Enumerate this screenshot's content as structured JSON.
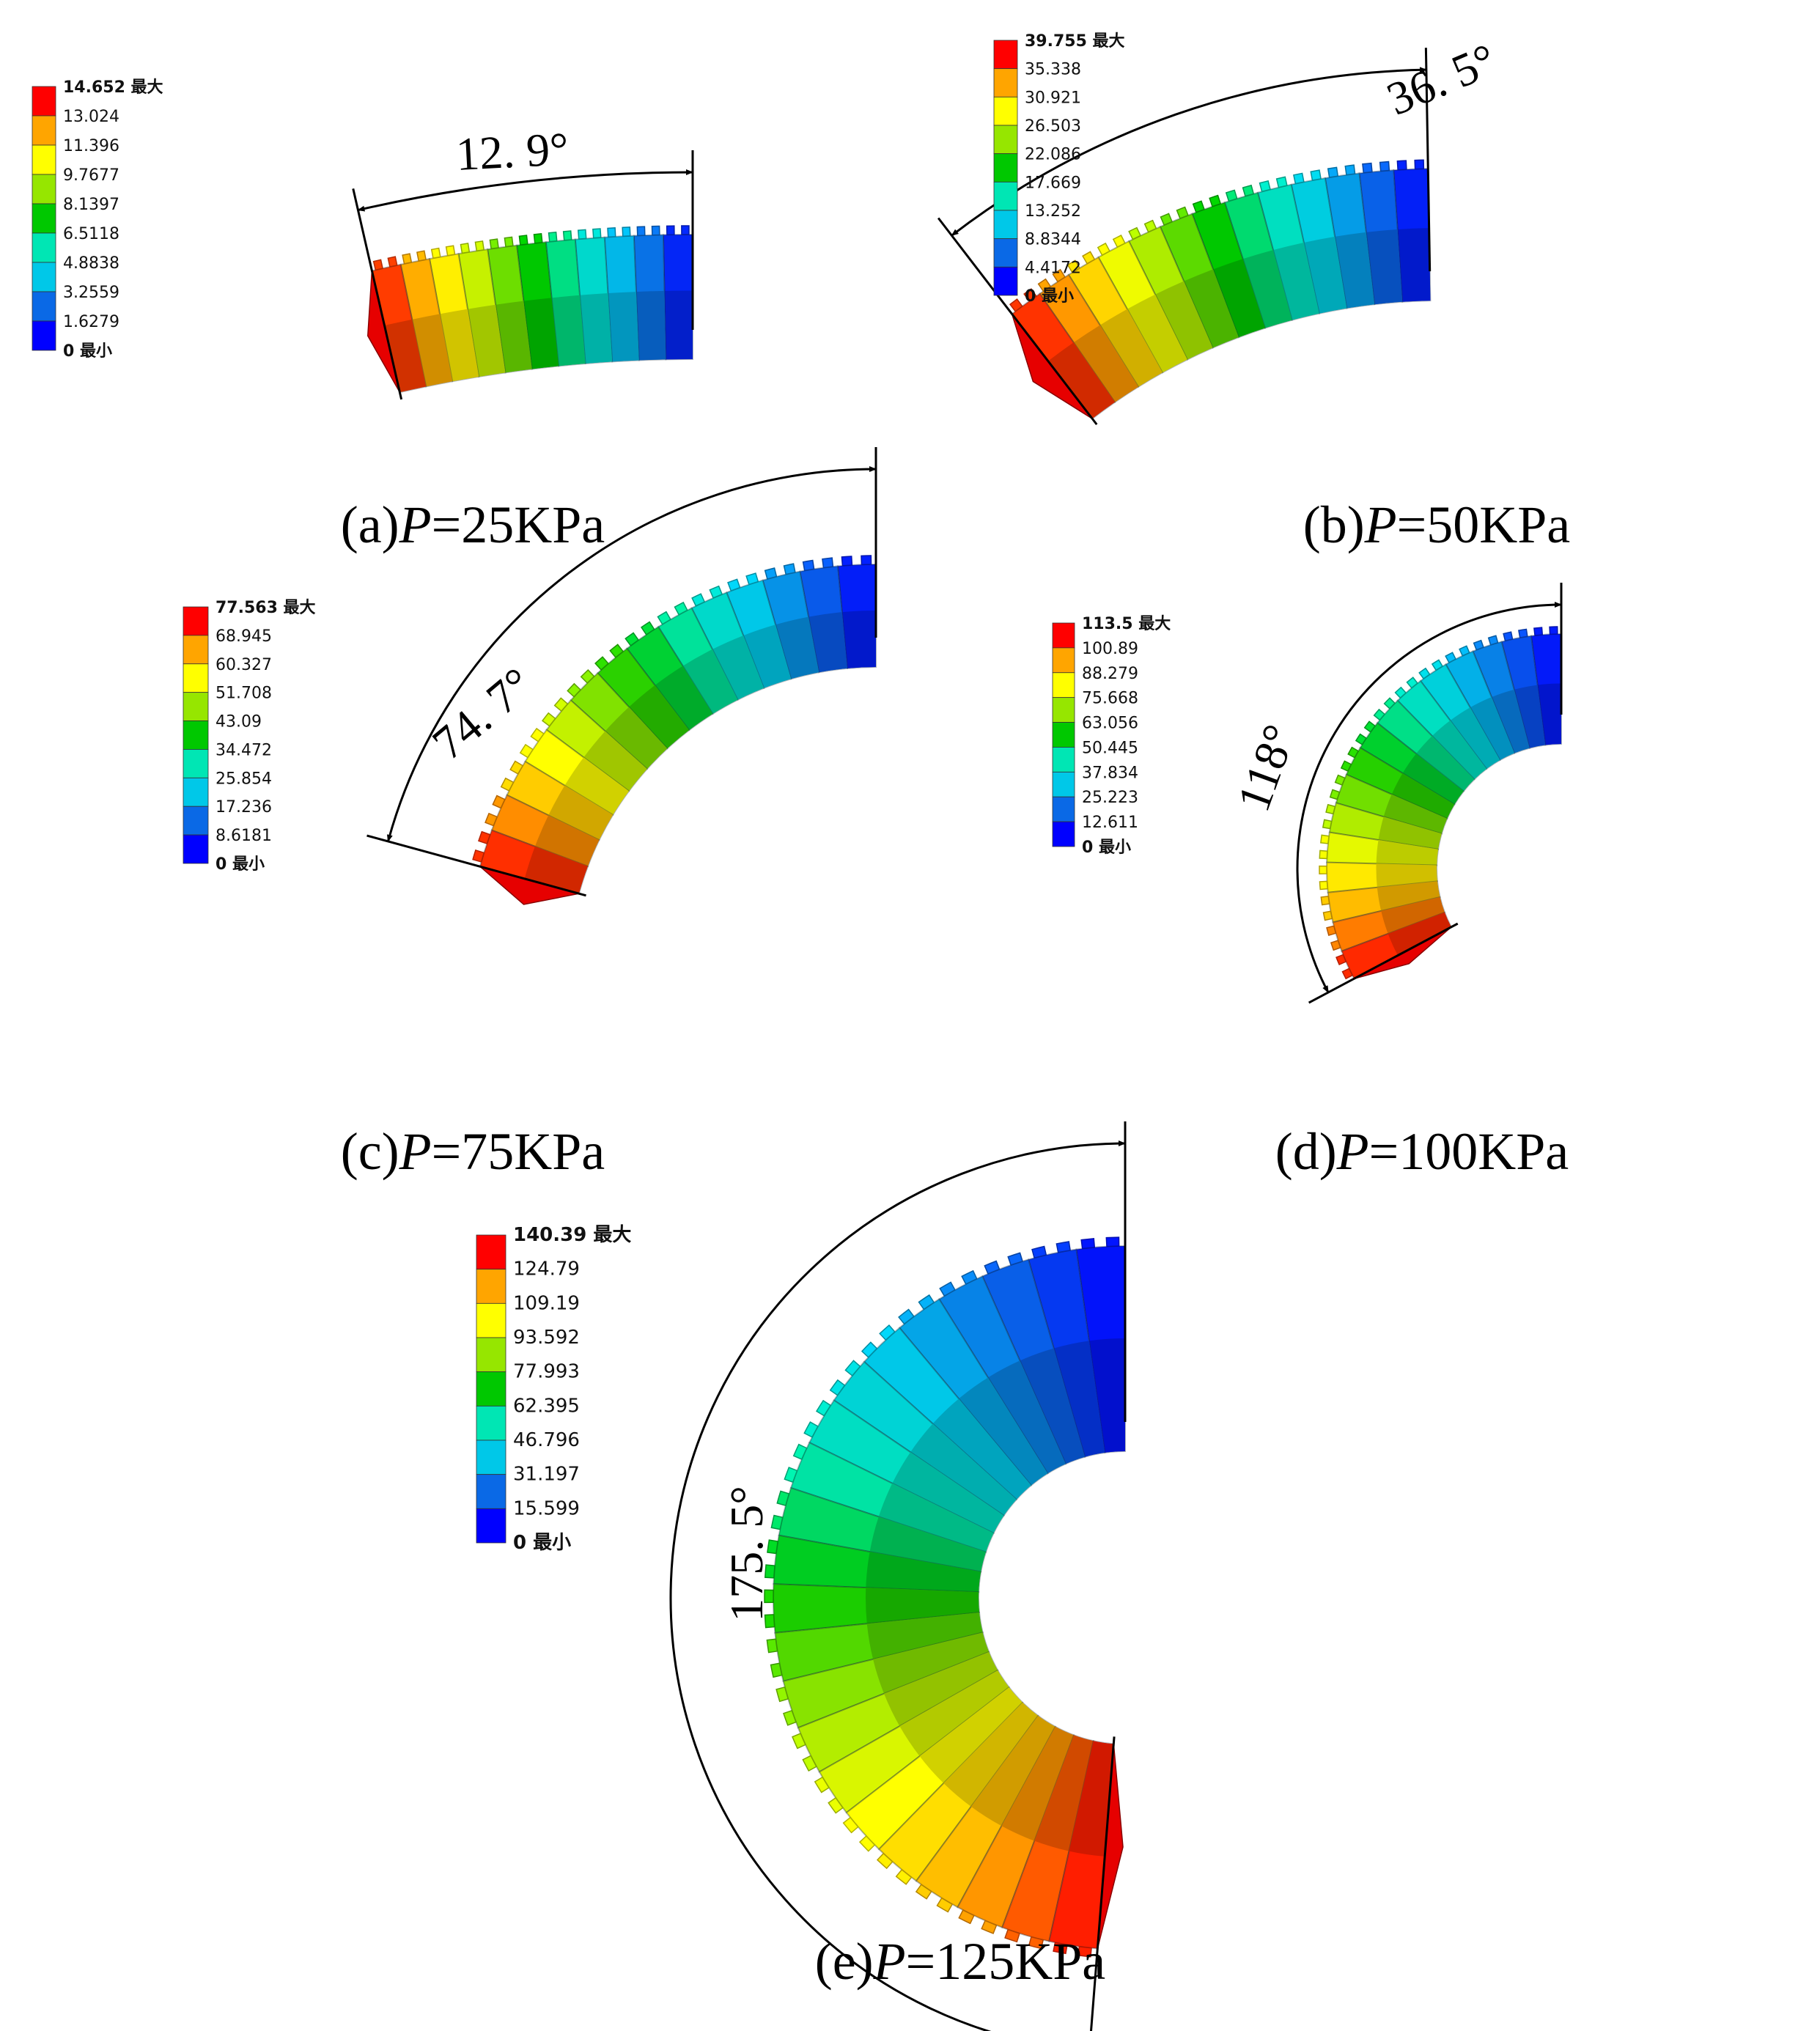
{
  "colormap": [
    "#0000ff",
    "#0a69e6",
    "#00c8e8",
    "#00e6b4",
    "#00c800",
    "#96e600",
    "#ffff00",
    "#ffa500",
    "#ff0000"
  ],
  "panels": [
    {
      "id": "a",
      "caption": {
        "label": "(a)",
        "var": "P",
        "rest": "=25KPa"
      },
      "angle_label": "12. 9°",
      "legend": {
        "max_label": "14.652 最大",
        "min_label": "0 最小",
        "values": [
          "13.024",
          "11.396",
          "9.7677",
          "8.1397",
          "6.5118",
          "4.8838",
          "3.2559",
          "1.6279"
        ]
      }
    },
    {
      "id": "b",
      "caption": {
        "label": "(b)",
        "var": "P",
        "rest": "=50KPa"
      },
      "angle_label": "36. 5°",
      "legend": {
        "max_label": "39.755 最大",
        "min_label": "0 最小",
        "values": [
          "35.338",
          "30.921",
          "26.503",
          "22.086",
          "17.669",
          "13.252",
          "8.8344",
          "4.4172"
        ]
      }
    },
    {
      "id": "c",
      "caption": {
        "label": "(c)",
        "var": "P",
        "rest": "=75KPa"
      },
      "angle_label": "74. 7°",
      "legend": {
        "max_label": "77.563 最大",
        "min_label": "0 最小",
        "values": [
          "68.945",
          "60.327",
          "51.708",
          "43.09",
          "34.472",
          "25.854",
          "17.236",
          "8.6181"
        ]
      }
    },
    {
      "id": "d",
      "caption": {
        "label": "(d)",
        "var": "P",
        "rest": "=100KPa"
      },
      "angle_label": "118°",
      "legend": {
        "max_label": "113.5 最大",
        "min_label": "0 最小",
        "values": [
          "100.89",
          "88.279",
          "75.668",
          "63.056",
          "50.445",
          "37.834",
          "25.223",
          "12.611"
        ]
      }
    },
    {
      "id": "e",
      "caption": {
        "label": "(e)",
        "var": "P",
        "rest": "=125KPa"
      },
      "angle_label": "175. 5°",
      "legend": {
        "max_label": "140.39 最大",
        "min_label": "0 最小",
        "values": [
          "124.79",
          "109.19",
          "93.592",
          "77.993",
          "62.395",
          "46.796",
          "31.197",
          "15.599"
        ]
      }
    }
  ]
}
